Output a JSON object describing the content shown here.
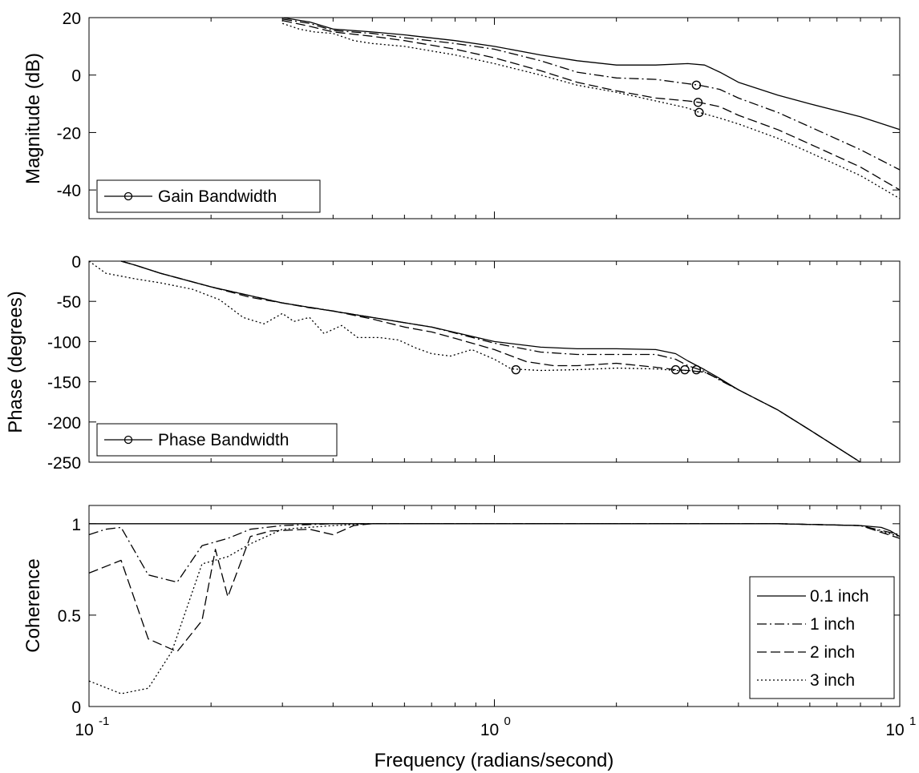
{
  "chart_data": [
    {
      "type": "line",
      "id": "magnitude",
      "ylabel": "Magnitude (dB)",
      "xlabel": "",
      "xscale": "log",
      "xlim": [
        0.1,
        10
      ],
      "ylim": [
        -50,
        20
      ],
      "yticks": [
        20,
        0,
        -20,
        -40
      ],
      "yticklabels": [
        "20",
        "0",
        "-20",
        "-40"
      ],
      "legend": {
        "placement": "bottom-left",
        "entries": [
          {
            "label": "Gain Bandwidth",
            "style": "solid",
            "marker": "circle"
          }
        ]
      },
      "series": [
        {
          "style": "solid",
          "x": [
            0.3,
            0.35,
            0.4,
            0.5,
            0.6,
            0.8,
            1.0,
            1.3,
            1.6,
            2.0,
            2.5,
            3.0,
            3.3,
            3.6,
            4.0,
            5.0,
            6.0,
            8.0,
            10.0
          ],
          "y": [
            20,
            18.5,
            16,
            15,
            14,
            12,
            10,
            7,
            5,
            3.5,
            3.5,
            4,
            3.5,
            1,
            -2.5,
            -7,
            -10,
            -14.5,
            -19
          ]
        },
        {
          "style": "dashdot",
          "x": [
            0.3,
            0.35,
            0.4,
            0.5,
            0.6,
            0.8,
            1.0,
            1.3,
            1.6,
            2.0,
            2.5,
            3.0,
            3.2,
            3.6,
            4.0,
            5.0,
            6.0,
            8.0,
            10.0
          ],
          "y": [
            19.5,
            18,
            15.5,
            14.5,
            13,
            11,
            9,
            5,
            1,
            -1,
            -1.5,
            -3,
            -3.5,
            -5,
            -8,
            -13,
            -18,
            -26,
            -33
          ]
        },
        {
          "style": "dashed",
          "x": [
            0.3,
            0.35,
            0.4,
            0.5,
            0.6,
            0.8,
            1.0,
            1.3,
            1.6,
            2.0,
            2.5,
            3.0,
            3.2,
            3.6,
            4.0,
            5.0,
            6.0,
            8.0,
            10.0
          ],
          "y": [
            19,
            17,
            15,
            13.5,
            12,
            9,
            6,
            1.5,
            -2.5,
            -5.5,
            -8,
            -9,
            -9.5,
            -11,
            -14,
            -19,
            -24,
            -32,
            -40
          ]
        },
        {
          "style": "dotted",
          "x": [
            0.3,
            0.33,
            0.36,
            0.4,
            0.45,
            0.5,
            0.6,
            0.8,
            1.0,
            1.3,
            1.6,
            2.0,
            2.5,
            3.0,
            3.2,
            3.6,
            4.0,
            5.0,
            6.0,
            8.0,
            10.0
          ],
          "y": [
            18,
            16,
            15,
            14.5,
            12,
            11,
            10,
            7,
            4,
            0,
            -3.5,
            -6,
            -9,
            -11.5,
            -13,
            -15,
            -17,
            -22,
            -27,
            -35,
            -43
          ]
        }
      ],
      "markers": [
        {
          "x": 3.15,
          "y": -3.5
        },
        {
          "x": 3.18,
          "y": -9.5
        },
        {
          "x": 3.2,
          "y": -13
        }
      ]
    },
    {
      "type": "line",
      "id": "phase",
      "ylabel": "Phase (degrees)",
      "xlabel": "",
      "xscale": "log",
      "xlim": [
        0.1,
        10
      ],
      "ylim": [
        -250,
        0
      ],
      "yticks": [
        0,
        -50,
        -100,
        -150,
        -200,
        -250
      ],
      "yticklabels": [
        "0",
        "-50",
        "-100",
        "-150",
        "-200",
        "-250"
      ],
      "legend": {
        "placement": "bottom-left",
        "entries": [
          {
            "label": "Phase Bandwidth",
            "style": "solid",
            "marker": "circle"
          }
        ]
      },
      "series": [
        {
          "style": "solid",
          "x": [
            0.12,
            0.13,
            0.15,
            0.2,
            0.3,
            0.5,
            0.7,
            1.0,
            1.3,
            1.6,
            2.0,
            2.5,
            2.8,
            3.0,
            3.3,
            3.6,
            4.0,
            5.0,
            6.0,
            8.0
          ],
          "y": [
            0,
            -5,
            -15,
            -32,
            -52,
            -70,
            -82,
            -100,
            -107,
            -109,
            -109,
            -110,
            -115,
            -124,
            -135,
            -146,
            -160,
            -185,
            -210,
            -250
          ]
        },
        {
          "style": "dashdot",
          "x": [
            0.12,
            0.13,
            0.15,
            0.2,
            0.3,
            0.4,
            0.5,
            0.7,
            1.0,
            1.3,
            1.6,
            2.0,
            2.5,
            2.8,
            3.0,
            3.3,
            3.6,
            4.0,
            5.0,
            6.0,
            8.0
          ],
          "y": [
            0,
            -5,
            -15,
            -32,
            -52,
            -62,
            -70,
            -82,
            -102,
            -113,
            -116,
            -116,
            -116,
            -122,
            -130,
            -137,
            -148,
            -160,
            -185,
            -210,
            -250
          ]
        },
        {
          "style": "dashed",
          "x": [
            0.12,
            0.13,
            0.15,
            0.2,
            0.25,
            0.3,
            0.35,
            0.4,
            0.5,
            0.6,
            0.7,
            0.8,
            1.0,
            1.2,
            1.4,
            1.6,
            2.0,
            2.5,
            2.8,
            3.0,
            3.3,
            3.6,
            4.0,
            5.0,
            6.0,
            8.0
          ],
          "y": [
            0,
            -5,
            -15,
            -32,
            -45,
            -52,
            -58,
            -62,
            -72,
            -82,
            -88,
            -96,
            -110,
            -125,
            -130,
            -130,
            -127,
            -132,
            -135,
            -136,
            -138,
            -147,
            -160,
            -185,
            -210,
            -250
          ]
        },
        {
          "style": "dotted",
          "x": [
            0.1,
            0.11,
            0.13,
            0.15,
            0.18,
            0.21,
            0.24,
            0.27,
            0.3,
            0.32,
            0.35,
            0.38,
            0.42,
            0.46,
            0.52,
            0.58,
            0.64,
            0.7,
            0.78,
            0.88,
            1.0,
            1.1,
            1.3,
            1.6,
            2.0,
            2.5,
            2.8,
            3.0,
            3.3,
            3.6,
            4.0
          ],
          "y": [
            0,
            -15,
            -22,
            -27,
            -35,
            -48,
            -70,
            -78,
            -65,
            -75,
            -70,
            -90,
            -80,
            -95,
            -95,
            -98,
            -108,
            -115,
            -118,
            -110,
            -122,
            -134,
            -136,
            -135,
            -133,
            -134,
            -136,
            -136,
            -138,
            -147,
            -160
          ]
        }
      ],
      "markers": [
        {
          "x": 1.13,
          "y": -135
        },
        {
          "x": 2.8,
          "y": -135
        },
        {
          "x": 2.95,
          "y": -135
        },
        {
          "x": 3.15,
          "y": -135
        }
      ]
    },
    {
      "type": "line",
      "id": "coherence",
      "ylabel": "Coherence",
      "xlabel": "Frequency (radians/second)",
      "xscale": "log",
      "xlim": [
        0.1,
        10
      ],
      "ylim": [
        0,
        1.1
      ],
      "yticks": [
        1,
        0.5,
        0
      ],
      "yticklabels": [
        "1",
        "0.5",
        "0"
      ],
      "xticklabels": [
        {
          "base": "10",
          "exp": "-1"
        },
        {
          "base": "10",
          "exp": "0"
        },
        {
          "base": "10",
          "exp": "1"
        }
      ],
      "legend": {
        "placement": "bottom-right",
        "entries": [
          {
            "label": "0.1 inch",
            "style": "solid"
          },
          {
            "label": "1 inch",
            "style": "dashdot"
          },
          {
            "label": "2 inch",
            "style": "dashed"
          },
          {
            "label": "3 inch",
            "style": "dotted"
          }
        ]
      },
      "series": [
        {
          "style": "solid",
          "x": [
            0.1,
            0.5,
            1,
            2,
            5,
            8,
            9,
            9.5,
            10
          ],
          "y": [
            1,
            1,
            1,
            1,
            1,
            0.99,
            0.98,
            0.96,
            0.93
          ]
        },
        {
          "style": "dashdot",
          "x": [
            0.1,
            0.11,
            0.12,
            0.14,
            0.165,
            0.19,
            0.22,
            0.25,
            0.3,
            0.4,
            0.5,
            5,
            8,
            10
          ],
          "y": [
            0.94,
            0.97,
            0.98,
            0.72,
            0.68,
            0.88,
            0.92,
            0.97,
            0.99,
            1,
            1,
            1,
            0.99,
            0.94
          ]
        },
        {
          "style": "dashed",
          "x": [
            0.1,
            0.12,
            0.14,
            0.165,
            0.19,
            0.205,
            0.22,
            0.25,
            0.28,
            0.35,
            0.4,
            0.45,
            0.5,
            5,
            8,
            10
          ],
          "y": [
            0.73,
            0.8,
            0.37,
            0.3,
            0.47,
            0.86,
            0.6,
            0.93,
            0.96,
            0.97,
            0.94,
            0.99,
            1,
            1,
            0.99,
            0.92
          ]
        },
        {
          "style": "dotted",
          "x": [
            0.1,
            0.12,
            0.14,
            0.16,
            0.19,
            0.22,
            0.25,
            0.3,
            0.4,
            0.5,
            5,
            8,
            10
          ],
          "y": [
            0.14,
            0.07,
            0.1,
            0.3,
            0.78,
            0.82,
            0.89,
            0.97,
            0.99,
            1,
            1,
            0.99,
            0.93
          ]
        }
      ]
    }
  ]
}
